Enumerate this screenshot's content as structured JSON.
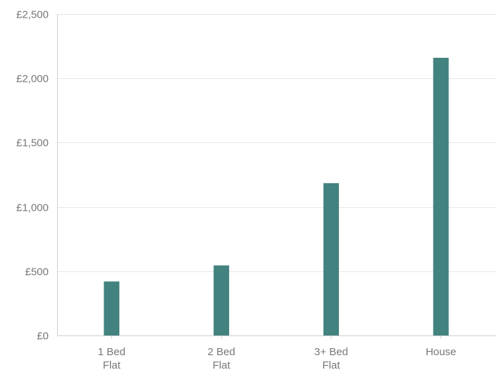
{
  "chart_data": {
    "type": "bar",
    "categories": [
      [
        "1 Bed",
        "Flat"
      ],
      [
        "2 Bed",
        "Flat"
      ],
      [
        "3+ Bed",
        "Flat"
      ],
      [
        "House"
      ]
    ],
    "series": [
      {
        "values": [
          420,
          545,
          1185,
          2160
        ]
      }
    ],
    "ylim": [
      0,
      2500
    ],
    "yticks": [
      "£0",
      "£500",
      "£1,000",
      "£1,500",
      "£2,000",
      "£2,500"
    ],
    "ytick_values": [
      0,
      500,
      1000,
      1500,
      2000,
      2500
    ],
    "grid": true,
    "legend": "none",
    "colors": {
      "bar": "#42827F",
      "grid": "#E6E6E6",
      "text": "#777777"
    }
  }
}
